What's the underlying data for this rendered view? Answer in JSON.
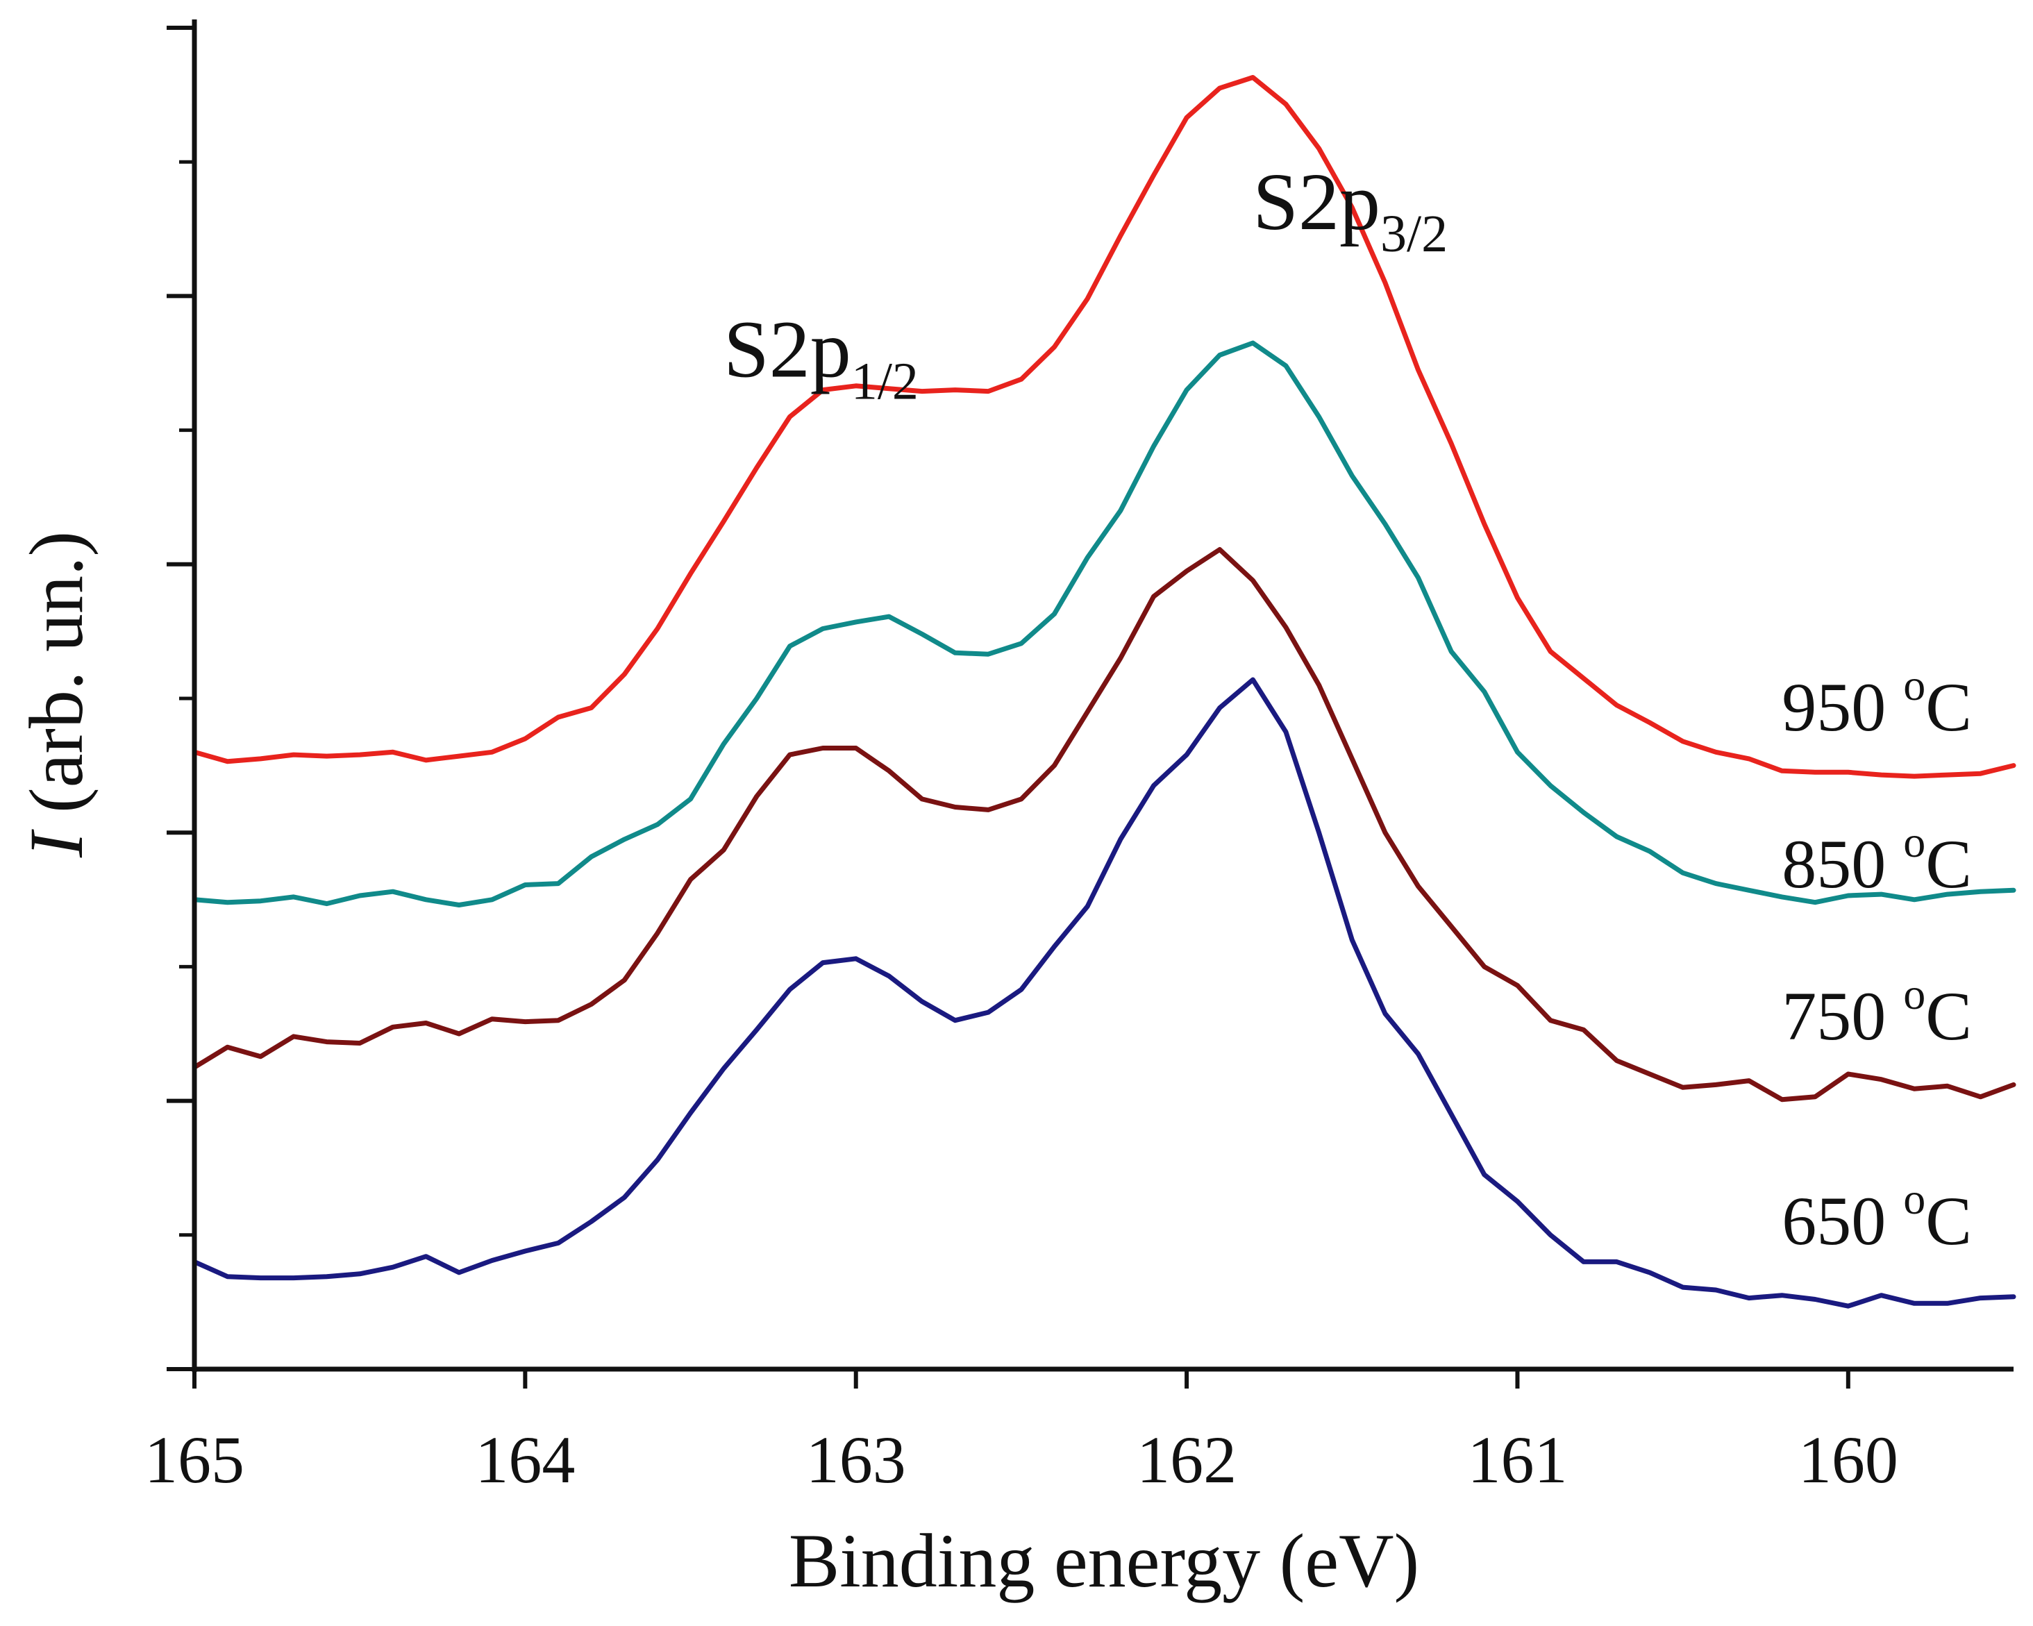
{
  "chart_data": {
    "type": "line",
    "title": "",
    "xlabel": "Binding energy (eV)",
    "ylabel_italic": "I",
    "ylabel_rest": " (arb. un.)",
    "xlim": [
      165,
      159.5
    ],
    "x_reversed": true,
    "ylim": [
      0,
      10
    ],
    "y_tick_labels_shown": false,
    "x_ticks": [
      165,
      164,
      163,
      162,
      161,
      160
    ],
    "x_tick_labels": [
      "165",
      "164",
      "163",
      "162",
      "161",
      "160"
    ],
    "y_major_ticks": [
      0,
      2,
      4,
      6,
      8,
      10
    ],
    "y_minor_ticks": [
      1,
      3,
      5,
      7,
      9
    ],
    "annotations": [
      {
        "id": "s2p12",
        "base": "S2p",
        "sub": "1/2",
        "x": 163.4,
        "y": 7.4
      },
      {
        "id": "s2p32",
        "base": "S2p",
        "sub": "3/2",
        "x": 161.8,
        "y": 8.5
      }
    ],
    "x": [
      165.0,
      164.9,
      164.8,
      164.7,
      164.6,
      164.5,
      164.4,
      164.3,
      164.2,
      164.1,
      164.0,
      163.9,
      163.8,
      163.7,
      163.6,
      163.5,
      163.4,
      163.3,
      163.2,
      163.1,
      163.0,
      162.9,
      162.8,
      162.7,
      162.6,
      162.5,
      162.4,
      162.3,
      162.2,
      162.1,
      162.0,
      161.9,
      161.8,
      161.7,
      161.6,
      161.5,
      161.4,
      161.3,
      161.2,
      161.1,
      161.0,
      160.9,
      160.8,
      160.7,
      160.6,
      160.5,
      160.4,
      160.3,
      160.2,
      160.1,
      160.0,
      159.9,
      159.8,
      159.7,
      159.6,
      159.5
    ],
    "series": [
      {
        "name": "650 °C",
        "label_num": "650 ",
        "label_sup": "o",
        "label_unit": "C",
        "color": "#1a1a80",
        "values": [
          0.8,
          0.69,
          0.68,
          0.68,
          0.69,
          0.71,
          0.76,
          0.84,
          0.72,
          0.81,
          0.88,
          0.94,
          1.1,
          1.28,
          1.56,
          1.91,
          2.24,
          2.53,
          2.83,
          3.03,
          3.06,
          2.93,
          2.74,
          2.6,
          2.66,
          2.83,
          3.15,
          3.45,
          3.95,
          4.35,
          4.58,
          4.93,
          5.14,
          4.75,
          4.0,
          3.2,
          2.65,
          2.35,
          1.9,
          1.45,
          1.25,
          1.0,
          0.8,
          0.8,
          0.72,
          0.61,
          0.59,
          0.53,
          0.55,
          0.52,
          0.47,
          0.55,
          0.49,
          0.49,
          0.53,
          0.54
        ]
      },
      {
        "name": "750 °C",
        "label_num": "750 ",
        "label_sup": "o",
        "label_unit": "C",
        "color": "#7a1212",
        "values": [
          2.25,
          2.4,
          2.33,
          2.48,
          2.44,
          2.43,
          2.55,
          2.58,
          2.5,
          2.61,
          2.59,
          2.6,
          2.72,
          2.9,
          3.25,
          3.65,
          3.87,
          4.27,
          4.58,
          4.63,
          4.63,
          4.46,
          4.25,
          4.19,
          4.17,
          4.25,
          4.5,
          4.9,
          5.3,
          5.76,
          5.95,
          6.11,
          5.88,
          5.53,
          5.1,
          4.55,
          4.0,
          3.6,
          3.3,
          3.0,
          2.86,
          2.6,
          2.53,
          2.3,
          2.2,
          2.1,
          2.12,
          2.15,
          2.01,
          2.03,
          2.2,
          2.16,
          2.09,
          2.11,
          2.03,
          2.12
        ]
      },
      {
        "name": "850 °C",
        "label_num": "850 ",
        "label_sup": "o",
        "label_unit": "C",
        "color": "#108a8a",
        "values": [
          3.5,
          3.48,
          3.49,
          3.52,
          3.47,
          3.53,
          3.56,
          3.5,
          3.46,
          3.5,
          3.61,
          3.62,
          3.82,
          3.95,
          4.06,
          4.25,
          4.66,
          5.0,
          5.39,
          5.52,
          5.57,
          5.61,
          5.48,
          5.34,
          5.33,
          5.41,
          5.63,
          6.05,
          6.4,
          6.88,
          7.3,
          7.56,
          7.65,
          7.48,
          7.1,
          6.66,
          6.3,
          5.9,
          5.35,
          5.05,
          4.6,
          4.35,
          4.15,
          3.97,
          3.86,
          3.7,
          3.62,
          3.57,
          3.52,
          3.48,
          3.53,
          3.54,
          3.5,
          3.54,
          3.56,
          3.57
        ]
      },
      {
        "name": "950 °C",
        "label_num": "950 ",
        "label_sup": "o",
        "label_unit": "C",
        "color": "#e8231d",
        "values": [
          4.6,
          4.53,
          4.55,
          4.58,
          4.57,
          4.58,
          4.6,
          4.54,
          4.57,
          4.6,
          4.7,
          4.86,
          4.93,
          5.18,
          5.52,
          5.93,
          6.32,
          6.72,
          7.1,
          7.3,
          7.33,
          7.31,
          7.29,
          7.3,
          7.29,
          7.38,
          7.62,
          7.98,
          8.45,
          8.9,
          9.33,
          9.55,
          9.63,
          9.43,
          9.1,
          8.66,
          8.1,
          7.45,
          6.9,
          6.3,
          5.75,
          5.35,
          5.15,
          4.95,
          4.82,
          4.68,
          4.6,
          4.55,
          4.46,
          4.45,
          4.45,
          4.43,
          4.42,
          4.43,
          4.44,
          4.5
        ]
      }
    ]
  }
}
